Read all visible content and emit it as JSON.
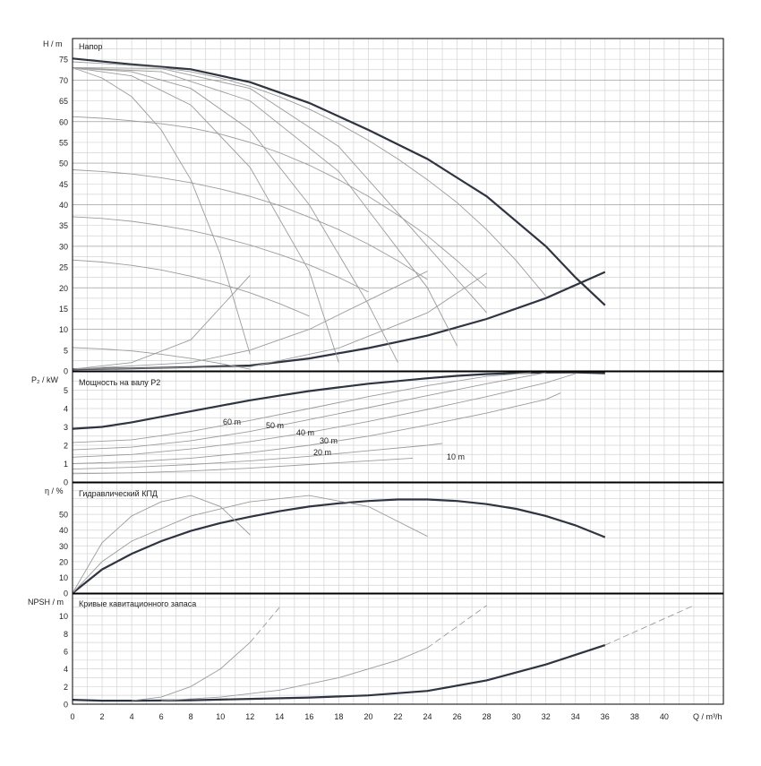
{
  "axis_labels": {
    "head": "H / m",
    "power": "P₂ / kW",
    "eta": "η / %",
    "npsh": "NPSH / m",
    "q": "Q / m³/h"
  },
  "chart_data": [
    {
      "type": "line",
      "title": "Напор",
      "ylabel": "H / m",
      "xlabel": "Q / m³/h",
      "xlim": [
        0,
        44
      ],
      "ylim": [
        0,
        80
      ],
      "x_ticks": [
        "0",
        "2",
        "4",
        "6",
        "8",
        "10",
        "12",
        "14",
        "16",
        "18",
        "20",
        "22",
        "24",
        "26",
        "28",
        "30",
        "32",
        "34",
        "36",
        "38",
        "40"
      ],
      "y_ticks": [
        "0",
        "5",
        "10",
        "15",
        "20",
        "25",
        "30",
        "35",
        "40",
        "45",
        "50",
        "55",
        "60",
        "65",
        "70",
        "75"
      ],
      "grid": true,
      "series": [
        {
          "style": "dark",
          "x": [
            0,
            4,
            8,
            12,
            16,
            20,
            24,
            28,
            32,
            34,
            36
          ],
          "y": [
            75.2,
            73.8,
            72.6,
            69.5,
            64.5,
            58,
            51,
            42,
            30,
            22.5,
            15.8
          ]
        },
        {
          "style": "dark",
          "x": [
            0,
            4,
            8,
            12,
            16,
            20,
            24,
            28,
            32,
            36
          ],
          "y": [
            0.4,
            0.6,
            0.9,
            1.3,
            3,
            5.5,
            8.5,
            12.5,
            17.5,
            23.8
          ]
        },
        {
          "style": "light",
          "x": [
            0,
            2,
            4,
            6,
            8,
            10,
            12,
            14,
            16,
            18,
            20,
            22,
            24,
            26,
            28,
            30,
            32
          ],
          "y": [
            74.4,
            74,
            73.5,
            73,
            72,
            70.5,
            68.5,
            66,
            63,
            59.5,
            55.5,
            51,
            46,
            40.5,
            34,
            26.5,
            18
          ]
        },
        {
          "style": "light",
          "x": [
            0,
            2,
            4,
            6,
            8,
            10,
            12,
            14,
            16,
            18,
            20,
            22,
            24,
            26,
            28
          ],
          "y": [
            61.2,
            60.8,
            60.2,
            59.5,
            58.5,
            57,
            55,
            52.5,
            49.5,
            46,
            42,
            37.5,
            32.5,
            26.5,
            20
          ]
        },
        {
          "style": "light",
          "x": [
            0,
            2,
            4,
            6,
            8,
            10,
            12,
            14,
            16,
            18,
            20,
            22,
            24
          ],
          "y": [
            48.4,
            48,
            47.4,
            46.5,
            45.3,
            43.8,
            42,
            39.8,
            37,
            34,
            30.5,
            26.5,
            22
          ]
        },
        {
          "style": "light",
          "x": [
            0,
            2,
            4,
            6,
            8,
            10,
            12,
            14,
            16,
            18,
            20
          ],
          "y": [
            37.1,
            36.7,
            36,
            35,
            33.8,
            32.2,
            30.3,
            28,
            25.5,
            22.5,
            19
          ]
        },
        {
          "style": "light",
          "x": [
            0,
            2,
            4,
            6,
            8,
            10,
            12,
            14,
            16
          ],
          "y": [
            26.7,
            26.2,
            25.4,
            24.3,
            22.8,
            21,
            18.8,
            16.2,
            13.2
          ]
        },
        {
          "style": "light",
          "x": [
            0,
            2,
            4,
            6,
            8,
            10,
            12
          ],
          "y": [
            5.6,
            5.3,
            4.8,
            4,
            3,
            1.8,
            0.4
          ]
        },
        {
          "style": "light",
          "x": [
            0,
            12,
            18,
            24,
            28
          ],
          "y": [
            0.4,
            1,
            5.5,
            14,
            23.5
          ]
        },
        {
          "style": "light",
          "x": [
            0,
            8,
            12,
            16,
            20,
            24
          ],
          "y": [
            0.4,
            2,
            5,
            10,
            17,
            24
          ]
        },
        {
          "style": "light",
          "x": [
            0,
            4,
            8,
            12
          ],
          "y": [
            0.4,
            2,
            7.5,
            23
          ]
        },
        {
          "style": "light",
          "x": [
            0,
            2,
            4,
            6,
            8,
            10,
            12
          ],
          "y": [
            73,
            70.5,
            66,
            58,
            46,
            28,
            4
          ]
        },
        {
          "style": "light",
          "x": [
            0,
            4,
            8,
            12,
            16,
            18
          ],
          "y": [
            73,
            71,
            64,
            49,
            24,
            2
          ]
        },
        {
          "style": "light",
          "x": [
            0,
            4,
            8,
            12,
            16,
            20,
            22
          ],
          "y": [
            73,
            72,
            68,
            58,
            40,
            16,
            2
          ]
        },
        {
          "style": "light",
          "x": [
            0,
            6,
            12,
            18,
            24,
            26
          ],
          "y": [
            73,
            72,
            65,
            48,
            20,
            6
          ]
        },
        {
          "style": "light",
          "x": [
            0,
            6,
            12,
            18,
            24,
            28
          ],
          "y": [
            73,
            72.8,
            68,
            54,
            30,
            14
          ]
        }
      ]
    },
    {
      "type": "line",
      "title": "Мощность на валу P2",
      "ylabel": "P₂ / kW",
      "xlim": [
        0,
        44
      ],
      "ylim": [
        0,
        6
      ],
      "y_ticks": [
        "0",
        "1",
        "2",
        "3",
        "4",
        "5"
      ],
      "annotations": [
        "60 m",
        "50 m",
        "40 m",
        "30 m",
        "20 m",
        "10 m"
      ],
      "series": [
        {
          "style": "dark",
          "x": [
            0,
            2,
            4,
            6,
            8,
            10,
            12,
            14,
            16,
            18,
            20,
            22,
            24,
            26,
            28,
            30,
            32,
            34,
            36
          ],
          "y": [
            2.9,
            3,
            3.25,
            3.55,
            3.85,
            4.15,
            4.45,
            4.7,
            4.95,
            5.15,
            5.35,
            5.5,
            5.65,
            5.78,
            5.88,
            5.93,
            5.96,
            5.97,
            5.92
          ]
        },
        {
          "style": "light",
          "x": [
            0,
            4,
            8,
            12,
            16,
            20,
            24,
            28,
            31
          ],
          "y": [
            2.15,
            2.3,
            2.75,
            3.35,
            4,
            4.65,
            5.25,
            5.75,
            5.95
          ]
        },
        {
          "style": "light",
          "x": [
            0,
            4,
            8,
            12,
            16,
            20,
            24,
            28,
            32
          ],
          "y": [
            1.75,
            1.9,
            2.25,
            2.75,
            3.4,
            4.05,
            4.7,
            5.35,
            5.95
          ]
        },
        {
          "style": "light",
          "x": [
            0,
            4,
            8,
            12,
            16,
            20,
            24,
            28,
            32,
            34
          ],
          "y": [
            1.35,
            1.5,
            1.8,
            2.2,
            2.7,
            3.3,
            3.95,
            4.65,
            5.4,
            5.9
          ]
        },
        {
          "style": "light",
          "x": [
            0,
            4,
            8,
            12,
            16,
            20,
            24,
            28,
            32,
            33
          ],
          "y": [
            1,
            1.1,
            1.3,
            1.6,
            2,
            2.5,
            3.1,
            3.75,
            4.5,
            4.85
          ]
        },
        {
          "style": "light",
          "x": [
            0,
            4,
            8,
            12,
            16,
            20,
            24,
            25
          ],
          "y": [
            0.7,
            0.8,
            0.95,
            1.15,
            1.4,
            1.7,
            2,
            2.1
          ]
        },
        {
          "style": "light",
          "x": [
            0,
            4,
            8,
            12,
            16,
            20,
            23
          ],
          "y": [
            0.45,
            0.5,
            0.6,
            0.75,
            0.95,
            1.15,
            1.3
          ]
        }
      ]
    },
    {
      "type": "line",
      "title": "Гидравлический КПД",
      "ylabel": "η / %",
      "xlim": [
        0,
        44
      ],
      "ylim": [
        0,
        70
      ],
      "y_ticks": [
        "0",
        "10",
        "20",
        "30",
        "40",
        "50"
      ],
      "series": [
        {
          "style": "dark",
          "x": [
            0,
            2,
            4,
            6,
            8,
            10,
            12,
            14,
            16,
            18,
            20,
            22,
            24,
            26,
            28,
            30,
            32,
            34,
            36
          ],
          "y": [
            0,
            15,
            25,
            33,
            39.5,
            44.5,
            48.5,
            52,
            55,
            57,
            58.5,
            59.5,
            59.5,
            58.5,
            56.5,
            53.5,
            49,
            43,
            35.5
          ]
        },
        {
          "style": "light",
          "x": [
            0,
            2,
            4,
            6,
            8,
            10,
            12
          ],
          "y": [
            0,
            32,
            49,
            58,
            62,
            55,
            37
          ]
        },
        {
          "style": "light",
          "x": [
            0,
            2,
            4,
            8,
            12,
            16,
            20,
            24
          ],
          "y": [
            0,
            20,
            33,
            49,
            58,
            62,
            55,
            36
          ]
        }
      ]
    },
    {
      "type": "line",
      "title": "Кривые кавитационного запаса",
      "ylabel": "NPSH / m",
      "xlim": [
        0,
        44
      ],
      "ylim": [
        0,
        12.5
      ],
      "y_ticks": [
        "0",
        "2",
        "4",
        "6",
        "8",
        "10"
      ],
      "series": [
        {
          "style": "dark",
          "x": [
            0,
            2,
            4,
            8,
            12,
            16,
            20,
            24,
            28,
            32,
            36
          ],
          "y": [
            0.5,
            0.4,
            0.4,
            0.45,
            0.6,
            0.75,
            1,
            1.5,
            2.7,
            4.5,
            6.7
          ]
        },
        {
          "style": "light",
          "x": [
            4,
            6,
            8,
            10,
            12
          ],
          "y": [
            0.4,
            0.8,
            2,
            4,
            7
          ]
        },
        {
          "style": "dashed",
          "x": [
            12,
            14
          ],
          "y": [
            7,
            11
          ]
        },
        {
          "style": "light",
          "x": [
            6,
            10,
            14,
            18,
            22,
            24
          ],
          "y": [
            0.4,
            0.8,
            1.6,
            3,
            5,
            6.4
          ]
        },
        {
          "style": "dashed",
          "x": [
            24,
            28
          ],
          "y": [
            6.4,
            11.2
          ]
        },
        {
          "style": "dashed",
          "x": [
            36,
            42
          ],
          "y": [
            6.7,
            11.2
          ]
        }
      ]
    }
  ]
}
